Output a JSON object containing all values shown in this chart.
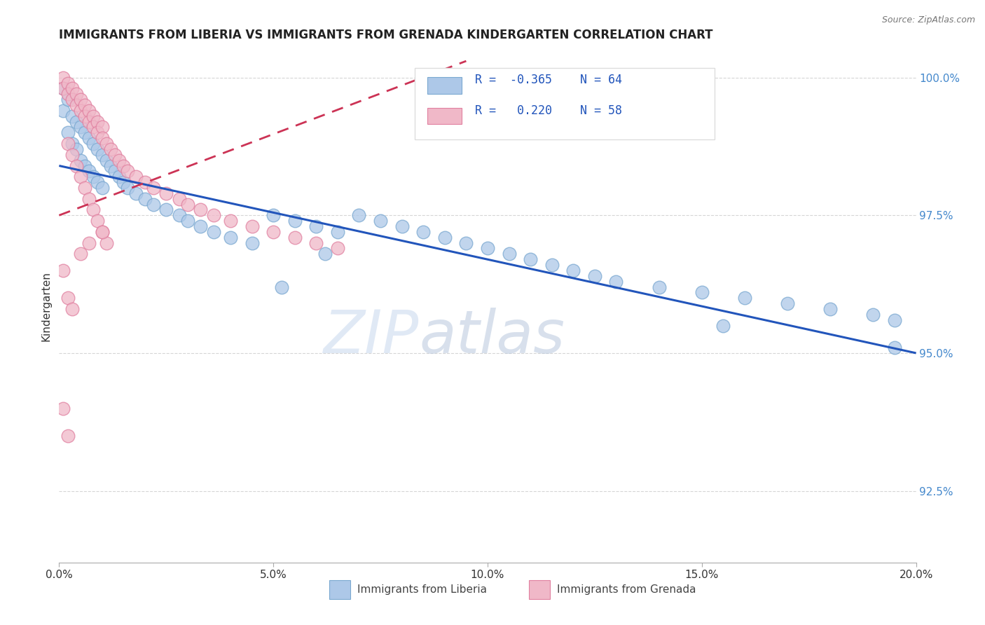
{
  "title": "IMMIGRANTS FROM LIBERIA VS IMMIGRANTS FROM GRENADA KINDERGARTEN CORRELATION CHART",
  "source": "Source: ZipAtlas.com",
  "ylabel": "Kindergarten",
  "xlim": [
    0.0,
    0.2
  ],
  "ylim": [
    0.912,
    1.005
  ],
  "yticks": [
    0.925,
    0.95,
    0.975,
    1.0
  ],
  "ytick_labels": [
    "92.5%",
    "95.0%",
    "97.5%",
    "100.0%"
  ],
  "xticks": [
    0.0,
    0.05,
    0.1,
    0.15,
    0.2
  ],
  "xtick_labels": [
    "0.0%",
    "5.0%",
    "10.0%",
    "15.0%",
    "20.0%"
  ],
  "liberia_color": "#adc8e8",
  "liberia_edge": "#7aa8d0",
  "grenada_color": "#f0b8c8",
  "grenada_edge": "#e080a0",
  "blue_line_color": "#2255bb",
  "pink_line_color": "#cc3355",
  "watermark_zip": "ZIP",
  "watermark_atlas": "atlas",
  "blue_line_x": [
    0.0,
    0.2
  ],
  "blue_line_y": [
    0.984,
    0.95
  ],
  "pink_line_x": [
    0.0,
    0.095
  ],
  "pink_line_y": [
    0.975,
    1.003
  ],
  "liberia_x": [
    0.001,
    0.001,
    0.002,
    0.002,
    0.003,
    0.003,
    0.004,
    0.004,
    0.005,
    0.005,
    0.006,
    0.006,
    0.007,
    0.007,
    0.008,
    0.008,
    0.009,
    0.009,
    0.01,
    0.01,
    0.011,
    0.012,
    0.013,
    0.014,
    0.015,
    0.016,
    0.018,
    0.02,
    0.022,
    0.025,
    0.028,
    0.03,
    0.033,
    0.036,
    0.04,
    0.045,
    0.05,
    0.055,
    0.06,
    0.065,
    0.07,
    0.075,
    0.08,
    0.085,
    0.09,
    0.095,
    0.1,
    0.105,
    0.11,
    0.115,
    0.12,
    0.125,
    0.13,
    0.14,
    0.15,
    0.16,
    0.17,
    0.18,
    0.19,
    0.195,
    0.052,
    0.062,
    0.155,
    0.195
  ],
  "liberia_y": [
    0.998,
    0.994,
    0.996,
    0.99,
    0.993,
    0.988,
    0.992,
    0.987,
    0.991,
    0.985,
    0.99,
    0.984,
    0.989,
    0.983,
    0.988,
    0.982,
    0.987,
    0.981,
    0.986,
    0.98,
    0.985,
    0.984,
    0.983,
    0.982,
    0.981,
    0.98,
    0.979,
    0.978,
    0.977,
    0.976,
    0.975,
    0.974,
    0.973,
    0.972,
    0.971,
    0.97,
    0.975,
    0.974,
    0.973,
    0.972,
    0.975,
    0.974,
    0.973,
    0.972,
    0.971,
    0.97,
    0.969,
    0.968,
    0.967,
    0.966,
    0.965,
    0.964,
    0.963,
    0.962,
    0.961,
    0.96,
    0.959,
    0.958,
    0.957,
    0.956,
    0.962,
    0.968,
    0.955,
    0.951
  ],
  "grenada_x": [
    0.001,
    0.001,
    0.002,
    0.002,
    0.003,
    0.003,
    0.004,
    0.004,
    0.005,
    0.005,
    0.006,
    0.006,
    0.007,
    0.007,
    0.008,
    0.008,
    0.009,
    0.009,
    0.01,
    0.01,
    0.011,
    0.012,
    0.013,
    0.014,
    0.015,
    0.016,
    0.018,
    0.02,
    0.022,
    0.025,
    0.028,
    0.03,
    0.033,
    0.036,
    0.04,
    0.045,
    0.05,
    0.055,
    0.06,
    0.065,
    0.002,
    0.003,
    0.004,
    0.005,
    0.006,
    0.007,
    0.008,
    0.009,
    0.01,
    0.011,
    0.001,
    0.002,
    0.003,
    0.001,
    0.002,
    0.005,
    0.007,
    0.01
  ],
  "grenada_y": [
    1.0,
    0.998,
    0.999,
    0.997,
    0.998,
    0.996,
    0.997,
    0.995,
    0.996,
    0.994,
    0.995,
    0.993,
    0.994,
    0.992,
    0.993,
    0.991,
    0.992,
    0.99,
    0.991,
    0.989,
    0.988,
    0.987,
    0.986,
    0.985,
    0.984,
    0.983,
    0.982,
    0.981,
    0.98,
    0.979,
    0.978,
    0.977,
    0.976,
    0.975,
    0.974,
    0.973,
    0.972,
    0.971,
    0.97,
    0.969,
    0.988,
    0.986,
    0.984,
    0.982,
    0.98,
    0.978,
    0.976,
    0.974,
    0.972,
    0.97,
    0.965,
    0.96,
    0.958,
    0.94,
    0.935,
    0.968,
    0.97,
    0.972
  ]
}
